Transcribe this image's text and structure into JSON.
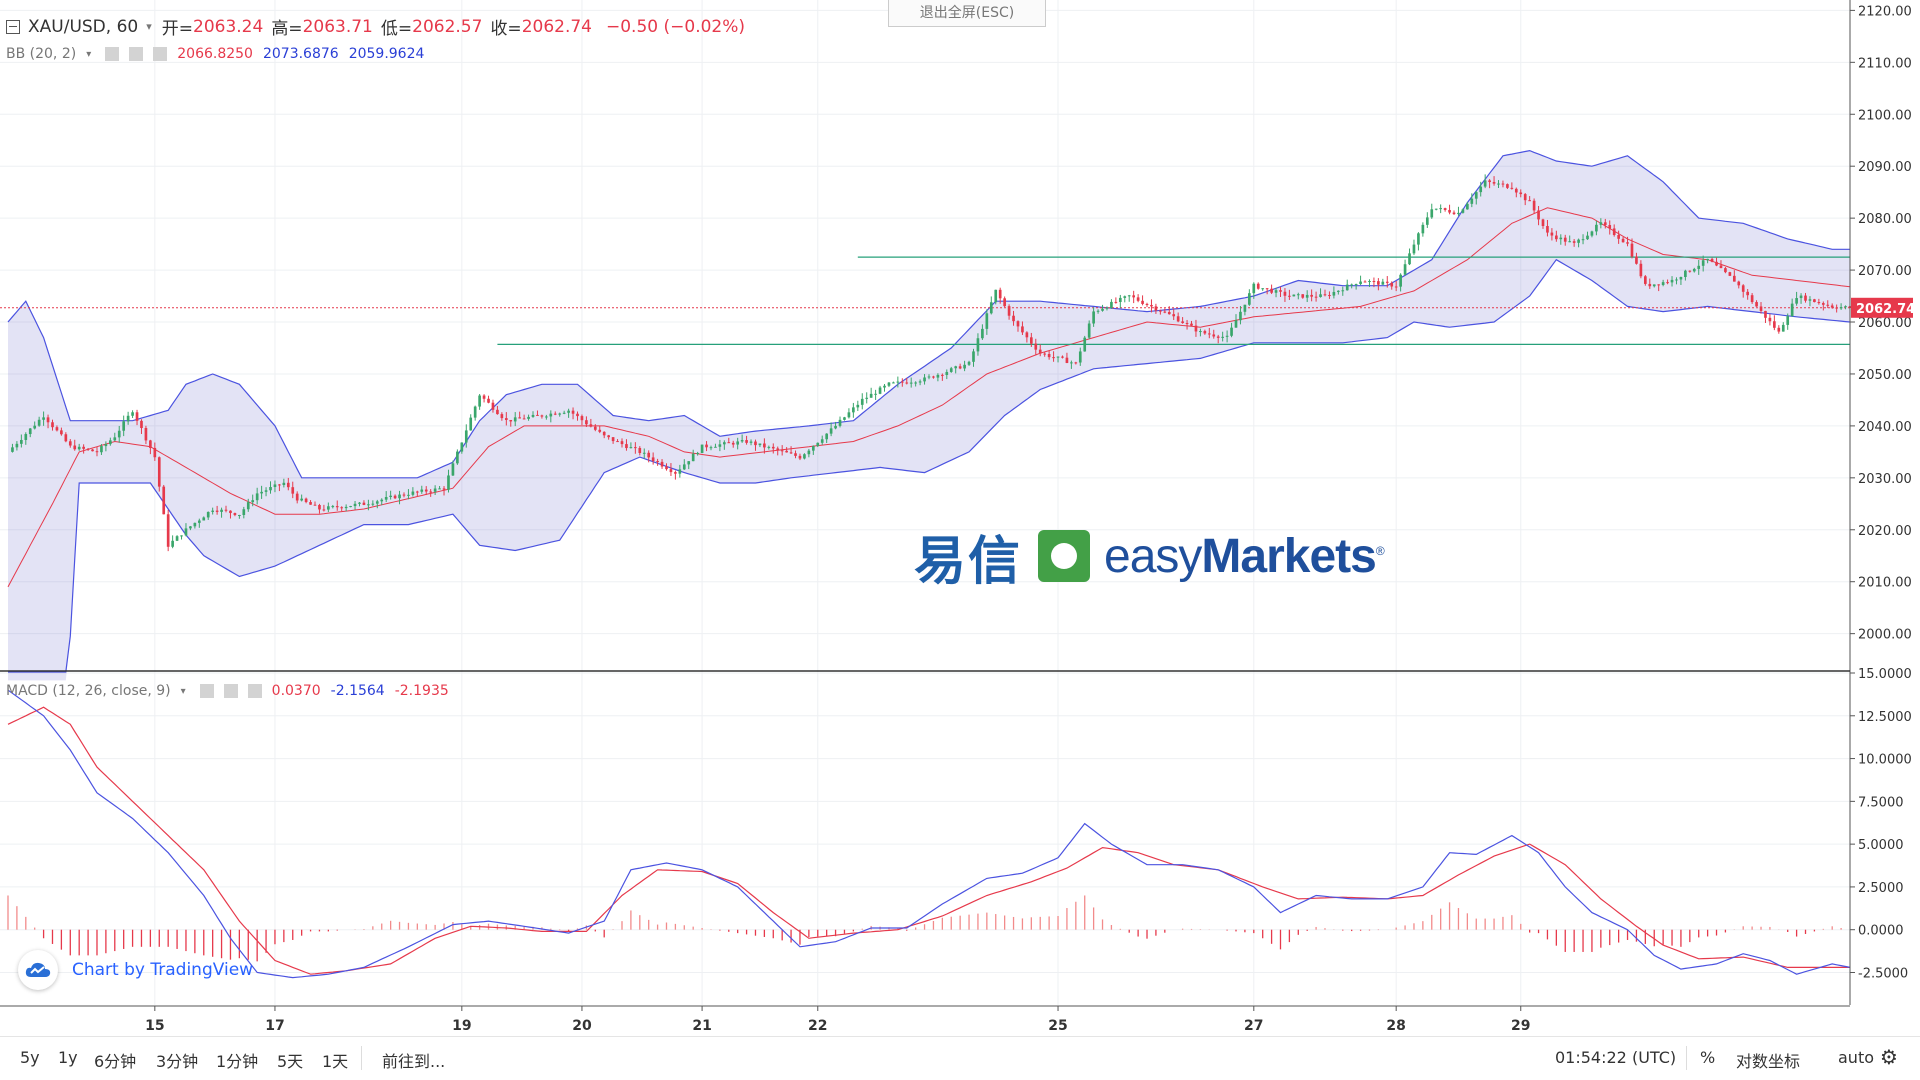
{
  "header": {
    "symbol": "XAU/USD, 60",
    "open_label": "开=",
    "open": "2063.24",
    "high_label": "高=",
    "high": "2063.71",
    "low_label": "低=",
    "low": "2062.57",
    "close_label": "收=",
    "close": "2062.74",
    "change": "−0.50 (−0.02%)"
  },
  "bb": {
    "label": "BB (20, 2)",
    "mid": "2066.8250",
    "upper": "2073.6876",
    "lower": "2059.9624"
  },
  "macd": {
    "label": "MACD (12, 26, close, 9)",
    "hist": "0.0370",
    "macd": "-2.1564",
    "signal": "-2.1935"
  },
  "exit_fullscreen": "退出全屏(ESC)",
  "watermark": {
    "cn": "易信",
    "en_light": "easy",
    "en_bold": "Markets"
  },
  "tradingview": "Chart by TradingView",
  "price_tag": "2062.74",
  "bottom": {
    "ranges": [
      "5y",
      "1y",
      "6分钟",
      "3分钟",
      "1分钟",
      "5天",
      "1天"
    ],
    "goto": "前往到...",
    "time": "01:54:22 (UTC)",
    "percent": "%",
    "log": "对数坐标",
    "auto": "auto"
  },
  "colors": {
    "up": "#3aa66b",
    "down": "#e6394b",
    "band": "#4b53e0",
    "band_fill": "rgba(100,100,200,0.18)",
    "ma": "#e6394b",
    "hline": "#26a07a"
  },
  "chart_data": {
    "type": "candlestick",
    "instrument": "XAU/USD",
    "interval": "60",
    "x_ticks": [
      "15",
      "17",
      "19",
      "20",
      "21",
      "22",
      "25",
      "27",
      "28",
      "29"
    ],
    "price_axis": {
      "ylim": [
        1993,
        2122
      ],
      "ticks": [
        "2120.00",
        "2110.00",
        "2100.00",
        "2090.00",
        "2080.00",
        "2070.00",
        "2060.00",
        "2050.00",
        "2040.00",
        "2030.00",
        "2020.00",
        "2010.00",
        "2000.00"
      ]
    },
    "macd_axis": {
      "ylim": [
        -4.4,
        15
      ],
      "ticks": [
        "15.0000",
        "12.5000",
        "10.0000",
        "7.5000",
        "5.0000",
        "2.5000",
        "0.0000",
        "-2.5000"
      ]
    },
    "horizontal_lines": [
      2072.5,
      2055.7
    ],
    "last_price": 2062.74,
    "close_path": [
      [
        0,
        2035
      ],
      [
        8,
        2042
      ],
      [
        14,
        2036
      ],
      [
        20,
        2035
      ],
      [
        24,
        2038
      ],
      [
        28,
        2043
      ],
      [
        33,
        2034
      ],
      [
        36,
        2017
      ],
      [
        40,
        2020
      ],
      [
        46,
        2024
      ],
      [
        52,
        2023
      ],
      [
        56,
        2027
      ],
      [
        62,
        2029
      ],
      [
        65,
        2026
      ],
      [
        70,
        2024
      ],
      [
        80,
        2025
      ],
      [
        90,
        2027
      ],
      [
        98,
        2028
      ],
      [
        106,
        2046
      ],
      [
        112,
        2041
      ],
      [
        120,
        2042
      ],
      [
        126,
        2043
      ],
      [
        134,
        2038
      ],
      [
        142,
        2035
      ],
      [
        150,
        2031
      ],
      [
        156,
        2036
      ],
      [
        166,
        2037
      ],
      [
        178,
        2034
      ],
      [
        186,
        2040
      ],
      [
        192,
        2045
      ],
      [
        198,
        2048
      ],
      [
        206,
        2049
      ],
      [
        216,
        2052
      ],
      [
        222,
        2066
      ],
      [
        226,
        2060
      ],
      [
        232,
        2054
      ],
      [
        240,
        2052
      ],
      [
        244,
        2062
      ],
      [
        252,
        2065
      ],
      [
        262,
        2061
      ],
      [
        268,
        2058
      ],
      [
        274,
        2057
      ],
      [
        280,
        2067
      ],
      [
        288,
        2065
      ],
      [
        296,
        2065
      ],
      [
        304,
        2068
      ],
      [
        312,
        2067
      ],
      [
        316,
        2075
      ],
      [
        320,
        2082
      ],
      [
        326,
        2081
      ],
      [
        332,
        2087
      ],
      [
        338,
        2086
      ],
      [
        342,
        2083
      ],
      [
        346,
        2077
      ],
      [
        352,
        2075
      ],
      [
        358,
        2079
      ],
      [
        364,
        2075
      ],
      [
        368,
        2067
      ],
      [
        374,
        2068
      ],
      [
        382,
        2072
      ],
      [
        388,
        2068
      ],
      [
        392,
        2064
      ],
      [
        398,
        2058
      ],
      [
        402,
        2065
      ],
      [
        410,
        2063
      ],
      [
        414,
        2062.74
      ]
    ],
    "bollinger_upper_path": [
      [
        0,
        2060
      ],
      [
        4,
        2064
      ],
      [
        8,
        2057
      ],
      [
        14,
        2041
      ],
      [
        28,
        2041
      ],
      [
        36,
        2043
      ],
      [
        40,
        2048
      ],
      [
        46,
        2050
      ],
      [
        52,
        2048
      ],
      [
        60,
        2040
      ],
      [
        66,
        2030
      ],
      [
        74,
        2030
      ],
      [
        82,
        2030
      ],
      [
        92,
        2030
      ],
      [
        100,
        2033
      ],
      [
        106,
        2041
      ],
      [
        112,
        2046
      ],
      [
        120,
        2048
      ],
      [
        128,
        2048
      ],
      [
        136,
        2042
      ],
      [
        144,
        2041
      ],
      [
        152,
        2042
      ],
      [
        160,
        2038
      ],
      [
        168,
        2039
      ],
      [
        180,
        2040
      ],
      [
        190,
        2041
      ],
      [
        200,
        2048
      ],
      [
        212,
        2055
      ],
      [
        222,
        2064
      ],
      [
        232,
        2064
      ],
      [
        244,
        2063
      ],
      [
        256,
        2062
      ],
      [
        268,
        2063
      ],
      [
        280,
        2065
      ],
      [
        290,
        2068
      ],
      [
        300,
        2067
      ],
      [
        310,
        2067
      ],
      [
        320,
        2072
      ],
      [
        328,
        2083
      ],
      [
        336,
        2092
      ],
      [
        342,
        2093
      ],
      [
        348,
        2091
      ],
      [
        356,
        2090
      ],
      [
        364,
        2092
      ],
      [
        372,
        2087
      ],
      [
        380,
        2080
      ],
      [
        390,
        2079
      ],
      [
        400,
        2076
      ],
      [
        410,
        2074
      ],
      [
        414,
        2074
      ]
    ],
    "bollinger_lower_path": [
      [
        0,
        1985
      ],
      [
        12,
        1970
      ],
      [
        16,
        2029
      ],
      [
        24,
        2029
      ],
      [
        32,
        2029
      ],
      [
        36,
        2024
      ],
      [
        40,
        2019
      ],
      [
        44,
        2015
      ],
      [
        52,
        2011
      ],
      [
        60,
        2013
      ],
      [
        70,
        2017
      ],
      [
        80,
        2021
      ],
      [
        90,
        2021
      ],
      [
        100,
        2023
      ],
      [
        106,
        2017
      ],
      [
        114,
        2016
      ],
      [
        124,
        2018
      ],
      [
        134,
        2031
      ],
      [
        142,
        2034
      ],
      [
        152,
        2031
      ],
      [
        160,
        2029
      ],
      [
        168,
        2029
      ],
      [
        176,
        2030
      ],
      [
        186,
        2031
      ],
      [
        196,
        2032
      ],
      [
        206,
        2031
      ],
      [
        216,
        2035
      ],
      [
        224,
        2042
      ],
      [
        232,
        2047
      ],
      [
        244,
        2051
      ],
      [
        256,
        2052
      ],
      [
        268,
        2053
      ],
      [
        280,
        2056
      ],
      [
        290,
        2056
      ],
      [
        300,
        2056
      ],
      [
        310,
        2057
      ],
      [
        316,
        2060
      ],
      [
        324,
        2059
      ],
      [
        334,
        2060
      ],
      [
        342,
        2065
      ],
      [
        348,
        2072
      ],
      [
        356,
        2068
      ],
      [
        364,
        2063
      ],
      [
        372,
        2062
      ],
      [
        382,
        2063
      ],
      [
        392,
        2062
      ],
      [
        402,
        2061
      ],
      [
        414,
        2060
      ]
    ],
    "bollinger_mid_path": [
      [
        0,
        2009
      ],
      [
        10,
        2025
      ],
      [
        16,
        2035
      ],
      [
        24,
        2037
      ],
      [
        32,
        2036
      ],
      [
        40,
        2032
      ],
      [
        50,
        2027
      ],
      [
        60,
        2023
      ],
      [
        70,
        2023
      ],
      [
        80,
        2024
      ],
      [
        90,
        2026
      ],
      [
        100,
        2028
      ],
      [
        108,
        2036
      ],
      [
        116,
        2040
      ],
      [
        124,
        2040
      ],
      [
        134,
        2040
      ],
      [
        144,
        2038
      ],
      [
        152,
        2035
      ],
      [
        160,
        2034
      ],
      [
        170,
        2035
      ],
      [
        180,
        2036
      ],
      [
        190,
        2037
      ],
      [
        200,
        2040
      ],
      [
        210,
        2044
      ],
      [
        220,
        2050
      ],
      [
        232,
        2054
      ],
      [
        244,
        2057
      ],
      [
        256,
        2060
      ],
      [
        268,
        2059
      ],
      [
        280,
        2061
      ],
      [
        292,
        2062
      ],
      [
        304,
        2063
      ],
      [
        316,
        2066
      ],
      [
        328,
        2072
      ],
      [
        338,
        2079
      ],
      [
        346,
        2082
      ],
      [
        356,
        2080
      ],
      [
        364,
        2076
      ],
      [
        372,
        2073
      ],
      [
        382,
        2072
      ],
      [
        392,
        2069
      ],
      [
        402,
        2068
      ],
      [
        414,
        2066.8
      ]
    ],
    "macd_line": [
      [
        0,
        14.0
      ],
      [
        8,
        12.5
      ],
      [
        14,
        10.5
      ],
      [
        20,
        8.0
      ],
      [
        28,
        6.5
      ],
      [
        36,
        4.5
      ],
      [
        44,
        2.0
      ],
      [
        50,
        -0.5
      ],
      [
        56,
        -2.5
      ],
      [
        64,
        -2.8
      ],
      [
        72,
        -2.6
      ],
      [
        80,
        -2.2
      ],
      [
        90,
        -1.0
      ],
      [
        100,
        0.3
      ],
      [
        108,
        0.5
      ],
      [
        116,
        0.2
      ],
      [
        126,
        -0.2
      ],
      [
        134,
        0.5
      ],
      [
        140,
        3.5
      ],
      [
        148,
        3.9
      ],
      [
        156,
        3.5
      ],
      [
        164,
        2.5
      ],
      [
        172,
        0.5
      ],
      [
        178,
        -1.0
      ],
      [
        186,
        -0.7
      ],
      [
        194,
        0.1
      ],
      [
        202,
        0.1
      ],
      [
        210,
        1.5
      ],
      [
        220,
        3.0
      ],
      [
        228,
        3.3
      ],
      [
        236,
        4.2
      ],
      [
        242,
        6.2
      ],
      [
        248,
        5.0
      ],
      [
        256,
        3.8
      ],
      [
        264,
        3.8
      ],
      [
        272,
        3.5
      ],
      [
        280,
        2.5
      ],
      [
        286,
        1.0
      ],
      [
        294,
        2.0
      ],
      [
        302,
        1.8
      ],
      [
        310,
        1.8
      ],
      [
        318,
        2.5
      ],
      [
        324,
        4.5
      ],
      [
        330,
        4.4
      ],
      [
        338,
        5.5
      ],
      [
        344,
        4.5
      ],
      [
        350,
        2.5
      ],
      [
        356,
        1.0
      ],
      [
        364,
        0.0
      ],
      [
        370,
        -1.5
      ],
      [
        376,
        -2.3
      ],
      [
        384,
        -2.0
      ],
      [
        390,
        -1.4
      ],
      [
        396,
        -1.8
      ],
      [
        402,
        -2.6
      ],
      [
        410,
        -2.0
      ],
      [
        414,
        -2.2
      ]
    ],
    "signal_line": [
      [
        0,
        12.0
      ],
      [
        8,
        13.0
      ],
      [
        14,
        12.0
      ],
      [
        20,
        9.5
      ],
      [
        28,
        7.5
      ],
      [
        36,
        5.5
      ],
      [
        44,
        3.5
      ],
      [
        52,
        0.5
      ],
      [
        60,
        -1.8
      ],
      [
        68,
        -2.6
      ],
      [
        76,
        -2.4
      ],
      [
        86,
        -2.0
      ],
      [
        96,
        -0.5
      ],
      [
        104,
        0.2
      ],
      [
        112,
        0.1
      ],
      [
        120,
        -0.1
      ],
      [
        130,
        -0.1
      ],
      [
        138,
        2.0
      ],
      [
        146,
        3.5
      ],
      [
        156,
        3.4
      ],
      [
        164,
        2.7
      ],
      [
        172,
        1.0
      ],
      [
        180,
        -0.5
      ],
      [
        190,
        -0.2
      ],
      [
        200,
        0.0
      ],
      [
        210,
        0.8
      ],
      [
        220,
        2.0
      ],
      [
        230,
        2.8
      ],
      [
        238,
        3.6
      ],
      [
        246,
        4.8
      ],
      [
        254,
        4.5
      ],
      [
        262,
        3.8
      ],
      [
        272,
        3.5
      ],
      [
        282,
        2.5
      ],
      [
        290,
        1.8
      ],
      [
        300,
        1.9
      ],
      [
        310,
        1.8
      ],
      [
        318,
        2.0
      ],
      [
        326,
        3.2
      ],
      [
        334,
        4.3
      ],
      [
        342,
        5.0
      ],
      [
        350,
        3.8
      ],
      [
        358,
        1.8
      ],
      [
        366,
        0.2
      ],
      [
        372,
        -0.9
      ],
      [
        380,
        -1.7
      ],
      [
        390,
        -1.6
      ],
      [
        400,
        -2.2
      ],
      [
        414,
        -2.2
      ]
    ]
  }
}
